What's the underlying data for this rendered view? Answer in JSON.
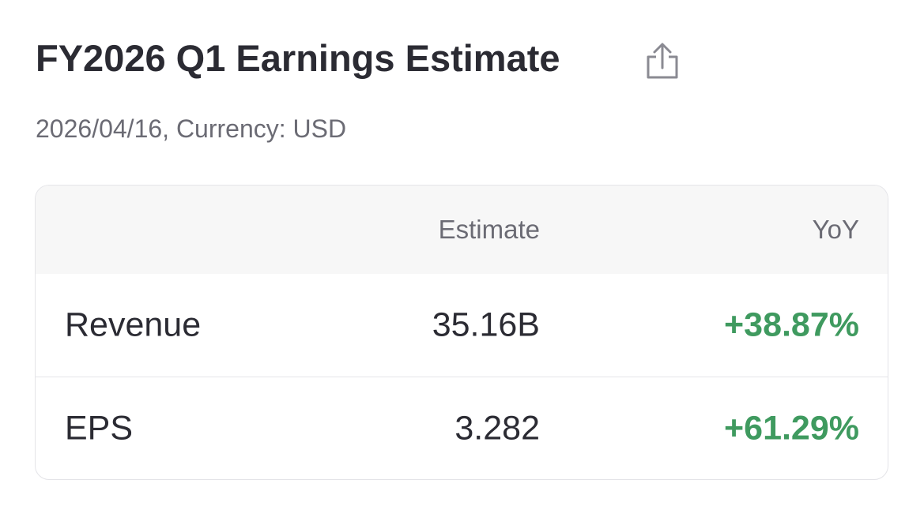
{
  "header": {
    "title": "FY2026 Q1 Earnings Estimate",
    "subtitle": "2026/04/16, Currency: USD"
  },
  "table": {
    "columns": [
      "Estimate",
      "YoY"
    ],
    "rows": [
      [
        "Revenue",
        "35.16B",
        "+38.87%"
      ],
      [
        "EPS",
        "3.282",
        "+61.29%"
      ]
    ]
  }
}
